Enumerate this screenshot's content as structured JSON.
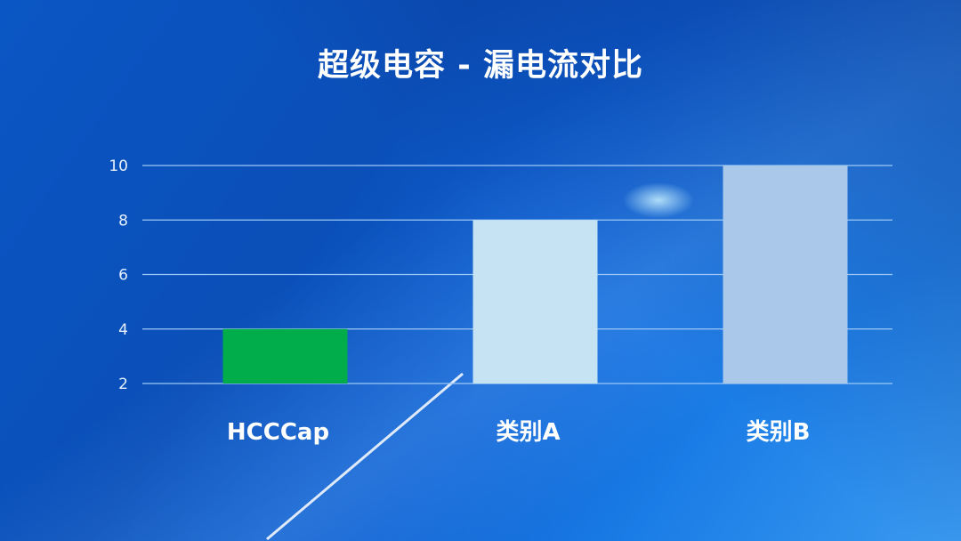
{
  "chart_data": {
    "type": "bar",
    "title": "超级电容 - 漏电流对比",
    "categories": [
      "HCCCap",
      "类别A",
      "类别B"
    ],
    "values": [
      4,
      8,
      10
    ],
    "colors": [
      "#00ad4a",
      "#c5e3f3",
      "#a9c8ea"
    ],
    "xlabel": "",
    "ylabel": "",
    "ylim": [
      2,
      10
    ],
    "yticks": [
      2,
      4,
      6,
      8,
      10
    ],
    "grid": true,
    "gridline_color": "#9cc8f5"
  }
}
